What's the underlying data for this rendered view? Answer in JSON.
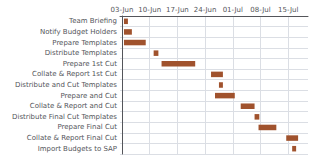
{
  "chart_data": {
    "type": "gantt",
    "orientation": "horizontal",
    "categories": [
      "Team Briefing",
      "Notify Budget Holders",
      "Prepare Templates",
      "Distribute Templates",
      "Prepare 1st Cut",
      "Collate & Report 1st Cut",
      "Distribute and Cut Templates",
      "Prepare and Cut",
      "Collate & Report and Cut",
      "Distribute Final Cut Templates",
      "Prepare Final Cut",
      "Collate & Report Final Cut",
      "Import Budgets to SAP"
    ],
    "starts": [
      0.5,
      0.5,
      0.5,
      8.0,
      10.0,
      22.5,
      24.5,
      23.5,
      30.0,
      33.5,
      34.5,
      41.5,
      43.0
    ],
    "values": [
      1.0,
      2.0,
      5.5,
      1.2,
      8.5,
      3.0,
      1.0,
      5.0,
      3.5,
      1.2,
      4.5,
      3.0,
      1.0
    ],
    "color": "#A0522D",
    "xlim": [
      -0.5,
      47.0
    ],
    "xticks": [
      {
        "value": 0,
        "label": "03-Jun"
      },
      {
        "value": 7,
        "label": "10-Jun"
      },
      {
        "value": 14,
        "label": "17-Jun"
      },
      {
        "value": 21,
        "label": "24-Jun"
      },
      {
        "value": 28,
        "label": "01-Jul"
      },
      {
        "value": 35,
        "label": "08-Jul"
      },
      {
        "value": 42,
        "label": "15-Jul"
      }
    ],
    "grid": true
  }
}
